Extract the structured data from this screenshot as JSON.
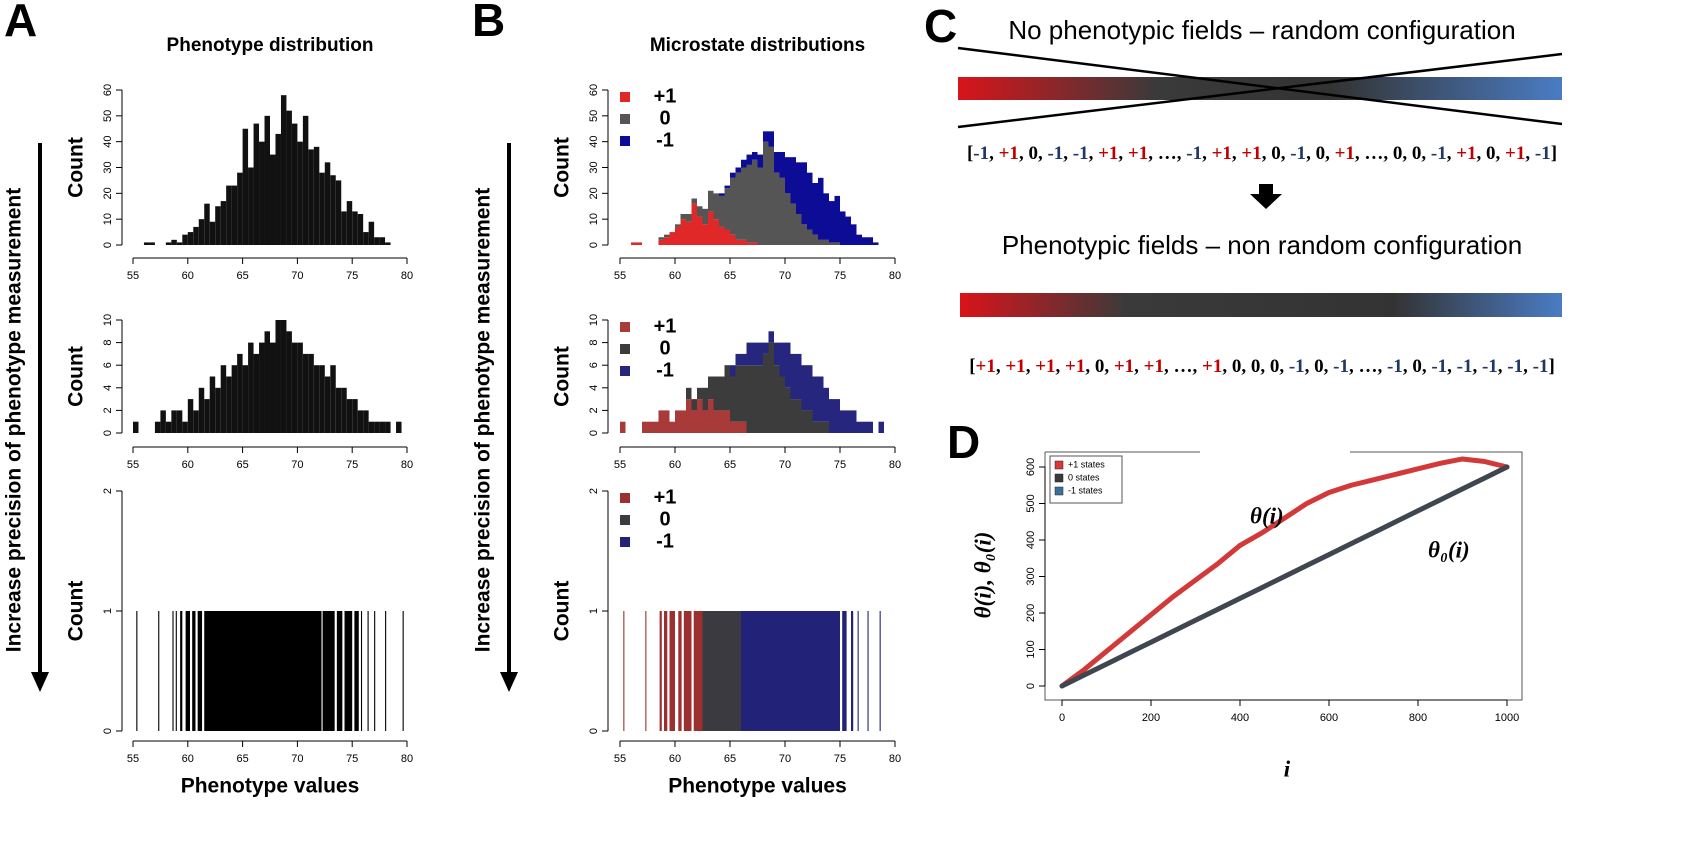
{
  "figure": {
    "letters": [
      "A",
      "B",
      "C",
      "D"
    ],
    "arrow_labels": [
      "Increase precision of phenotype measurement",
      "Increase precision of phenotype measurement"
    ]
  },
  "panel_c": {
    "title_random": "No phenotypic fields – random configuration",
    "title_nonrandom": "Phenotypic fields – non random configuration",
    "open": "[",
    "close": "]",
    "separator": ", ",
    "token_colors": {
      "+1": "#c00000",
      "-1": "#1f3864"
    },
    "sequence_random": [
      "-1",
      "+1",
      "0",
      "-1",
      "-1",
      "+1",
      "+1",
      "…",
      "-1",
      "+1",
      "+1",
      "0",
      "-1",
      "0",
      "+1",
      "…",
      "0",
      "0",
      "-1",
      "+1",
      "0",
      "+1",
      "-1"
    ],
    "sequence_nonrandom": [
      "+1",
      "+1",
      "+1",
      "+1",
      "0",
      "+1",
      "+1",
      "…",
      "+1",
      "0",
      "0",
      "0",
      "-1",
      "0",
      "-1",
      "…",
      "-1",
      "0",
      "-1",
      "-1",
      "-1",
      "-1",
      "-1"
    ]
  },
  "chart_data": [
    {
      "type": "histogram",
      "title": "Phenotype distribution",
      "ylabel": "Count",
      "color": "#111111",
      "bins": [
        56,
        56.5,
        57,
        57.5,
        58,
        58.5,
        59,
        59.5,
        60,
        60.5,
        61,
        61.5,
        62,
        62.5,
        63,
        63.5,
        64,
        64.5,
        65,
        65.5,
        66,
        66.5,
        67,
        67.5,
        68,
        68.5,
        69,
        69.5,
        70,
        70.5,
        71,
        71.5,
        72,
        72.5,
        73,
        73.5,
        74,
        74.5,
        75,
        75.5,
        76,
        76.5,
        77,
        77.5,
        78,
        78.5
      ],
      "values": [
        1,
        1,
        0,
        0,
        1,
        2,
        1,
        4,
        5,
        7,
        10,
        16,
        9,
        15,
        17,
        23,
        23,
        28,
        45,
        30,
        47,
        40,
        50,
        35,
        43,
        58,
        52,
        47,
        40,
        50,
        37,
        38,
        28,
        32,
        27,
        25,
        13,
        17,
        13,
        12,
        5,
        9,
        3,
        3,
        1
      ],
      "xlim": [
        55,
        80
      ],
      "xticks": [
        55,
        60,
        65,
        70,
        75,
        80
      ],
      "ylim": [
        0,
        60
      ],
      "yticks": [
        0,
        10,
        20,
        30,
        40,
        50,
        60
      ]
    },
    {
      "type": "histogram",
      "ylabel": "Count",
      "color": "#111111",
      "bins": [
        55,
        55.5,
        56,
        56.5,
        57,
        57.5,
        58,
        58.5,
        59,
        59.5,
        60,
        60.5,
        61,
        61.5,
        62,
        62.5,
        63,
        63.5,
        64,
        64.5,
        65,
        65.5,
        66,
        66.5,
        67,
        67.5,
        68,
        68.5,
        69,
        69.5,
        70,
        70.5,
        71,
        71.5,
        72,
        72.5,
        73,
        73.5,
        74,
        74.5,
        75,
        75.5,
        76,
        76.5,
        77,
        77.5,
        78,
        78.5,
        79,
        79.5,
        80
      ],
      "values": [
        1,
        0,
        0,
        0,
        1,
        2,
        1,
        2,
        2,
        1,
        3,
        2,
        4,
        3,
        5,
        4,
        6,
        5,
        6,
        7,
        6,
        8,
        7,
        8,
        9,
        8,
        10,
        10,
        9,
        8,
        8,
        7,
        7,
        6,
        6,
        5,
        6,
        4,
        4,
        3,
        3,
        2,
        2,
        1,
        1,
        1,
        1,
        0,
        1,
        0
      ],
      "xlim": [
        55,
        80
      ],
      "xticks": [
        55,
        60,
        65,
        70,
        75,
        80
      ],
      "ylim": [
        0,
        10
      ],
      "yticks": [
        0,
        2,
        4,
        6,
        8,
        10
      ]
    },
    {
      "type": "histogram",
      "ylabel": "Count",
      "xlabel": "Phenotype values",
      "color": "#000000",
      "bins": [
        55.3,
        55.4,
        57.3,
        57.4,
        58.6,
        58.7,
        58.9,
        59.0,
        59.3,
        59.5,
        59.8,
        60.2,
        60.4,
        60.7,
        60.9,
        61.3,
        61.5,
        72.2,
        72.3,
        73.4,
        73.6,
        74.1,
        74.3,
        75.0,
        75.2,
        75.6,
        75.8,
        75.9,
        76.4,
        76.5,
        77.0,
        77.1,
        78.0,
        78.1,
        79.6,
        79.7
      ],
      "values": [
        1,
        0,
        1,
        0,
        1,
        0,
        1,
        0,
        1,
        0,
        1,
        0,
        1,
        0,
        1,
        0,
        1,
        0,
        1,
        0,
        1,
        0,
        1,
        0,
        1,
        0,
        1,
        0,
        1,
        0,
        1,
        0,
        1,
        0,
        1
      ],
      "xlim": [
        55,
        80
      ],
      "xticks": [
        55,
        60,
        65,
        70,
        75,
        80
      ],
      "ylim": [
        0,
        2
      ],
      "yticks": [
        0,
        1,
        2
      ]
    },
    {
      "type": "histogram",
      "title": "Microstate distributions",
      "ylabel": "Count",
      "bins": [
        56,
        56.5,
        57,
        57.5,
        58,
        58.5,
        59,
        59.5,
        60,
        60.5,
        61,
        61.5,
        62,
        62.5,
        63,
        63.5,
        64,
        64.5,
        65,
        65.5,
        66,
        66.5,
        67,
        67.5,
        68,
        68.5,
        69,
        69.5,
        70,
        70.5,
        71,
        71.5,
        72,
        72.5,
        73,
        73.5,
        74,
        74.5,
        75,
        75.5,
        76,
        76.5,
        77,
        77.5,
        78,
        78.5
      ],
      "series": [
        {
          "name": "+1",
          "color": "#e02828",
          "values": [
            1,
            1,
            0,
            0,
            0,
            2,
            3,
            5,
            7,
            10,
            9,
            16,
            11,
            8,
            13,
            10,
            7,
            6,
            4,
            2,
            2,
            1,
            1,
            0,
            0,
            0,
            0,
            0,
            0,
            0,
            0,
            0,
            0,
            0,
            0,
            0,
            0,
            0,
            0,
            0,
            0,
            0,
            0,
            0,
            0
          ]
        },
        {
          "name": "0",
          "color": "#555555",
          "values": [
            0,
            0,
            0,
            0,
            0,
            1,
            1,
            0,
            1,
            2,
            3,
            2,
            4,
            6,
            8,
            10,
            12,
            16,
            22,
            26,
            28,
            30,
            32,
            30,
            40,
            38,
            28,
            26,
            20,
            16,
            12,
            8,
            6,
            4,
            2,
            2,
            1,
            1,
            0,
            0,
            0,
            0,
            0,
            0,
            0
          ]
        },
        {
          "name": "-1",
          "color": "#0c0c96",
          "values": [
            0,
            0,
            0,
            0,
            0,
            0,
            0,
            0,
            0,
            0,
            0,
            0,
            0,
            0,
            0,
            0,
            1,
            1,
            2,
            2,
            3,
            4,
            3,
            5,
            4,
            6,
            8,
            10,
            14,
            18,
            20,
            24,
            22,
            20,
            24,
            18,
            16,
            18,
            13,
            11,
            8,
            4,
            3,
            3,
            1
          ]
        }
      ],
      "xlim": [
        55,
        80
      ],
      "xticks": [
        55,
        60,
        65,
        70,
        75,
        80
      ],
      "ylim": [
        0,
        60
      ],
      "yticks": [
        0,
        10,
        20,
        30,
        40,
        50,
        60
      ]
    },
    {
      "type": "histogram",
      "ylabel": "Count",
      "bins": [
        55,
        55.5,
        56,
        56.5,
        57,
        57.5,
        58,
        58.5,
        59,
        59.5,
        60,
        60.5,
        61,
        61.5,
        62,
        62.5,
        63,
        63.5,
        64,
        64.5,
        65,
        65.5,
        66,
        66.5,
        67,
        67.5,
        68,
        68.5,
        69,
        69.5,
        70,
        70.5,
        71,
        71.5,
        72,
        72.5,
        73,
        73.5,
        74,
        74.5,
        75,
        75.5,
        76,
        76.5,
        77,
        77.5,
        78,
        78.5,
        79,
        79.5,
        80
      ],
      "series": [
        {
          "name": "+1",
          "color": "#a83a3a",
          "values": [
            1,
            0,
            0,
            0,
            1,
            1,
            1,
            2,
            2,
            1,
            2,
            2,
            3,
            2,
            3,
            2,
            3,
            2,
            2,
            2,
            1,
            1,
            1,
            0,
            0,
            0,
            0,
            0,
            0,
            0,
            0,
            0,
            0,
            0,
            0,
            0,
            0,
            0,
            0,
            0,
            0,
            0,
            0,
            0,
            0,
            0,
            0,
            0,
            0,
            0
          ]
        },
        {
          "name": "0",
          "color": "#3c3c3c",
          "values": [
            0,
            0,
            0,
            0,
            0,
            0,
            0,
            0,
            0,
            0,
            0,
            0,
            1,
            1,
            1,
            2,
            2,
            3,
            3,
            4,
            4,
            5,
            5,
            6,
            6,
            6,
            7,
            8,
            6,
            5,
            4,
            3,
            3,
            2,
            2,
            1,
            1,
            1,
            0,
            0,
            0,
            0,
            0,
            0,
            0,
            0,
            0,
            0,
            0,
            0
          ]
        },
        {
          "name": "-1",
          "color": "#26267e",
          "values": [
            0,
            0,
            0,
            0,
            0,
            0,
            0,
            0,
            0,
            0,
            0,
            0,
            0,
            0,
            0,
            0,
            0,
            0,
            0,
            0,
            1,
            1,
            1,
            2,
            2,
            2,
            1,
            1,
            2,
            3,
            4,
            4,
            4,
            4,
            4,
            4,
            4,
            3,
            3,
            3,
            2,
            2,
            2,
            1,
            1,
            1,
            0,
            1,
            0,
            0
          ]
        }
      ],
      "xlim": [
        55,
        80
      ],
      "xticks": [
        55,
        60,
        65,
        70,
        75,
        80
      ],
      "ylim": [
        0,
        10
      ],
      "yticks": [
        0,
        2,
        4,
        6,
        8,
        10
      ]
    },
    {
      "type": "histogram",
      "ylabel": "Count",
      "xlabel": "Phenotype values",
      "bins": [
        55.3,
        55.4,
        57.3,
        57.4,
        58.6,
        58.8,
        59.0,
        59.3,
        59.5,
        60.0,
        60.3,
        60.6,
        60.8,
        61.5,
        61.7,
        62.5,
        66.0,
        75.0,
        75.2,
        75.6,
        76.0,
        76.2,
        76.6,
        76.7,
        77.5,
        77.6,
        78.6,
        78.7
      ],
      "series": [
        {
          "name": "+1",
          "color": "#9a3030",
          "values": [
            1,
            0,
            1,
            0,
            1,
            0,
            1,
            0,
            1,
            0,
            1,
            0,
            1,
            0,
            1,
            0,
            0,
            0,
            0,
            0,
            0,
            0,
            0,
            0,
            0,
            0,
            0
          ]
        },
        {
          "name": "0",
          "color": "#3a3a40",
          "values": [
            0,
            0,
            0,
            0,
            0,
            0,
            0,
            0,
            0,
            0,
            0,
            0,
            0,
            0,
            0,
            1,
            0,
            0,
            0,
            0,
            0,
            0,
            0,
            0,
            0,
            0,
            0
          ]
        },
        {
          "name": "-1",
          "color": "#222278",
          "values": [
            0,
            0,
            0,
            0,
            0,
            0,
            0,
            0,
            0,
            0,
            0,
            0,
            0,
            0,
            0,
            0,
            1,
            0,
            1,
            0,
            1,
            0,
            1,
            0,
            1,
            0,
            1
          ]
        }
      ],
      "xlim": [
        55,
        80
      ],
      "xticks": [
        55,
        60,
        65,
        70,
        75,
        80
      ],
      "ylim": [
        0,
        2
      ],
      "yticks": [
        0,
        1,
        2
      ]
    },
    {
      "type": "line",
      "xlabel": "i",
      "ylabel": "θ(i), θ₀(i)",
      "x": [
        0,
        50,
        100,
        150,
        200,
        250,
        300,
        350,
        400,
        450,
        500,
        550,
        600,
        650,
        700,
        750,
        800,
        850,
        900,
        950,
        1000
      ],
      "series": [
        {
          "name": "θ(i)",
          "color": "#d23a3a",
          "values": [
            0,
            45,
            95,
            145,
            195,
            245,
            290,
            335,
            385,
            420,
            460,
            500,
            530,
            550,
            565,
            580,
            595,
            610,
            622,
            615,
            600
          ]
        },
        {
          "name": "θ₀(i)",
          "color": "#3f4650",
          "values": [
            0,
            30,
            60,
            90,
            120,
            150,
            180,
            210,
            240,
            270,
            300,
            330,
            360,
            390,
            420,
            450,
            480,
            510,
            540,
            570,
            600
          ]
        }
      ],
      "legend": [
        {
          "name": "+1 states",
          "color": "#d9383a"
        },
        {
          "name": "0 states",
          "color": "#3a3a3a"
        },
        {
          "name": "-1 states",
          "color": "#3a6f9a"
        }
      ],
      "xlim": [
        0,
        1000
      ],
      "xticks": [
        0,
        200,
        400,
        600,
        800,
        1000
      ],
      "ylim": [
        0,
        600
      ],
      "yticks": [
        0,
        100,
        200,
        300,
        400,
        500,
        600
      ]
    }
  ]
}
